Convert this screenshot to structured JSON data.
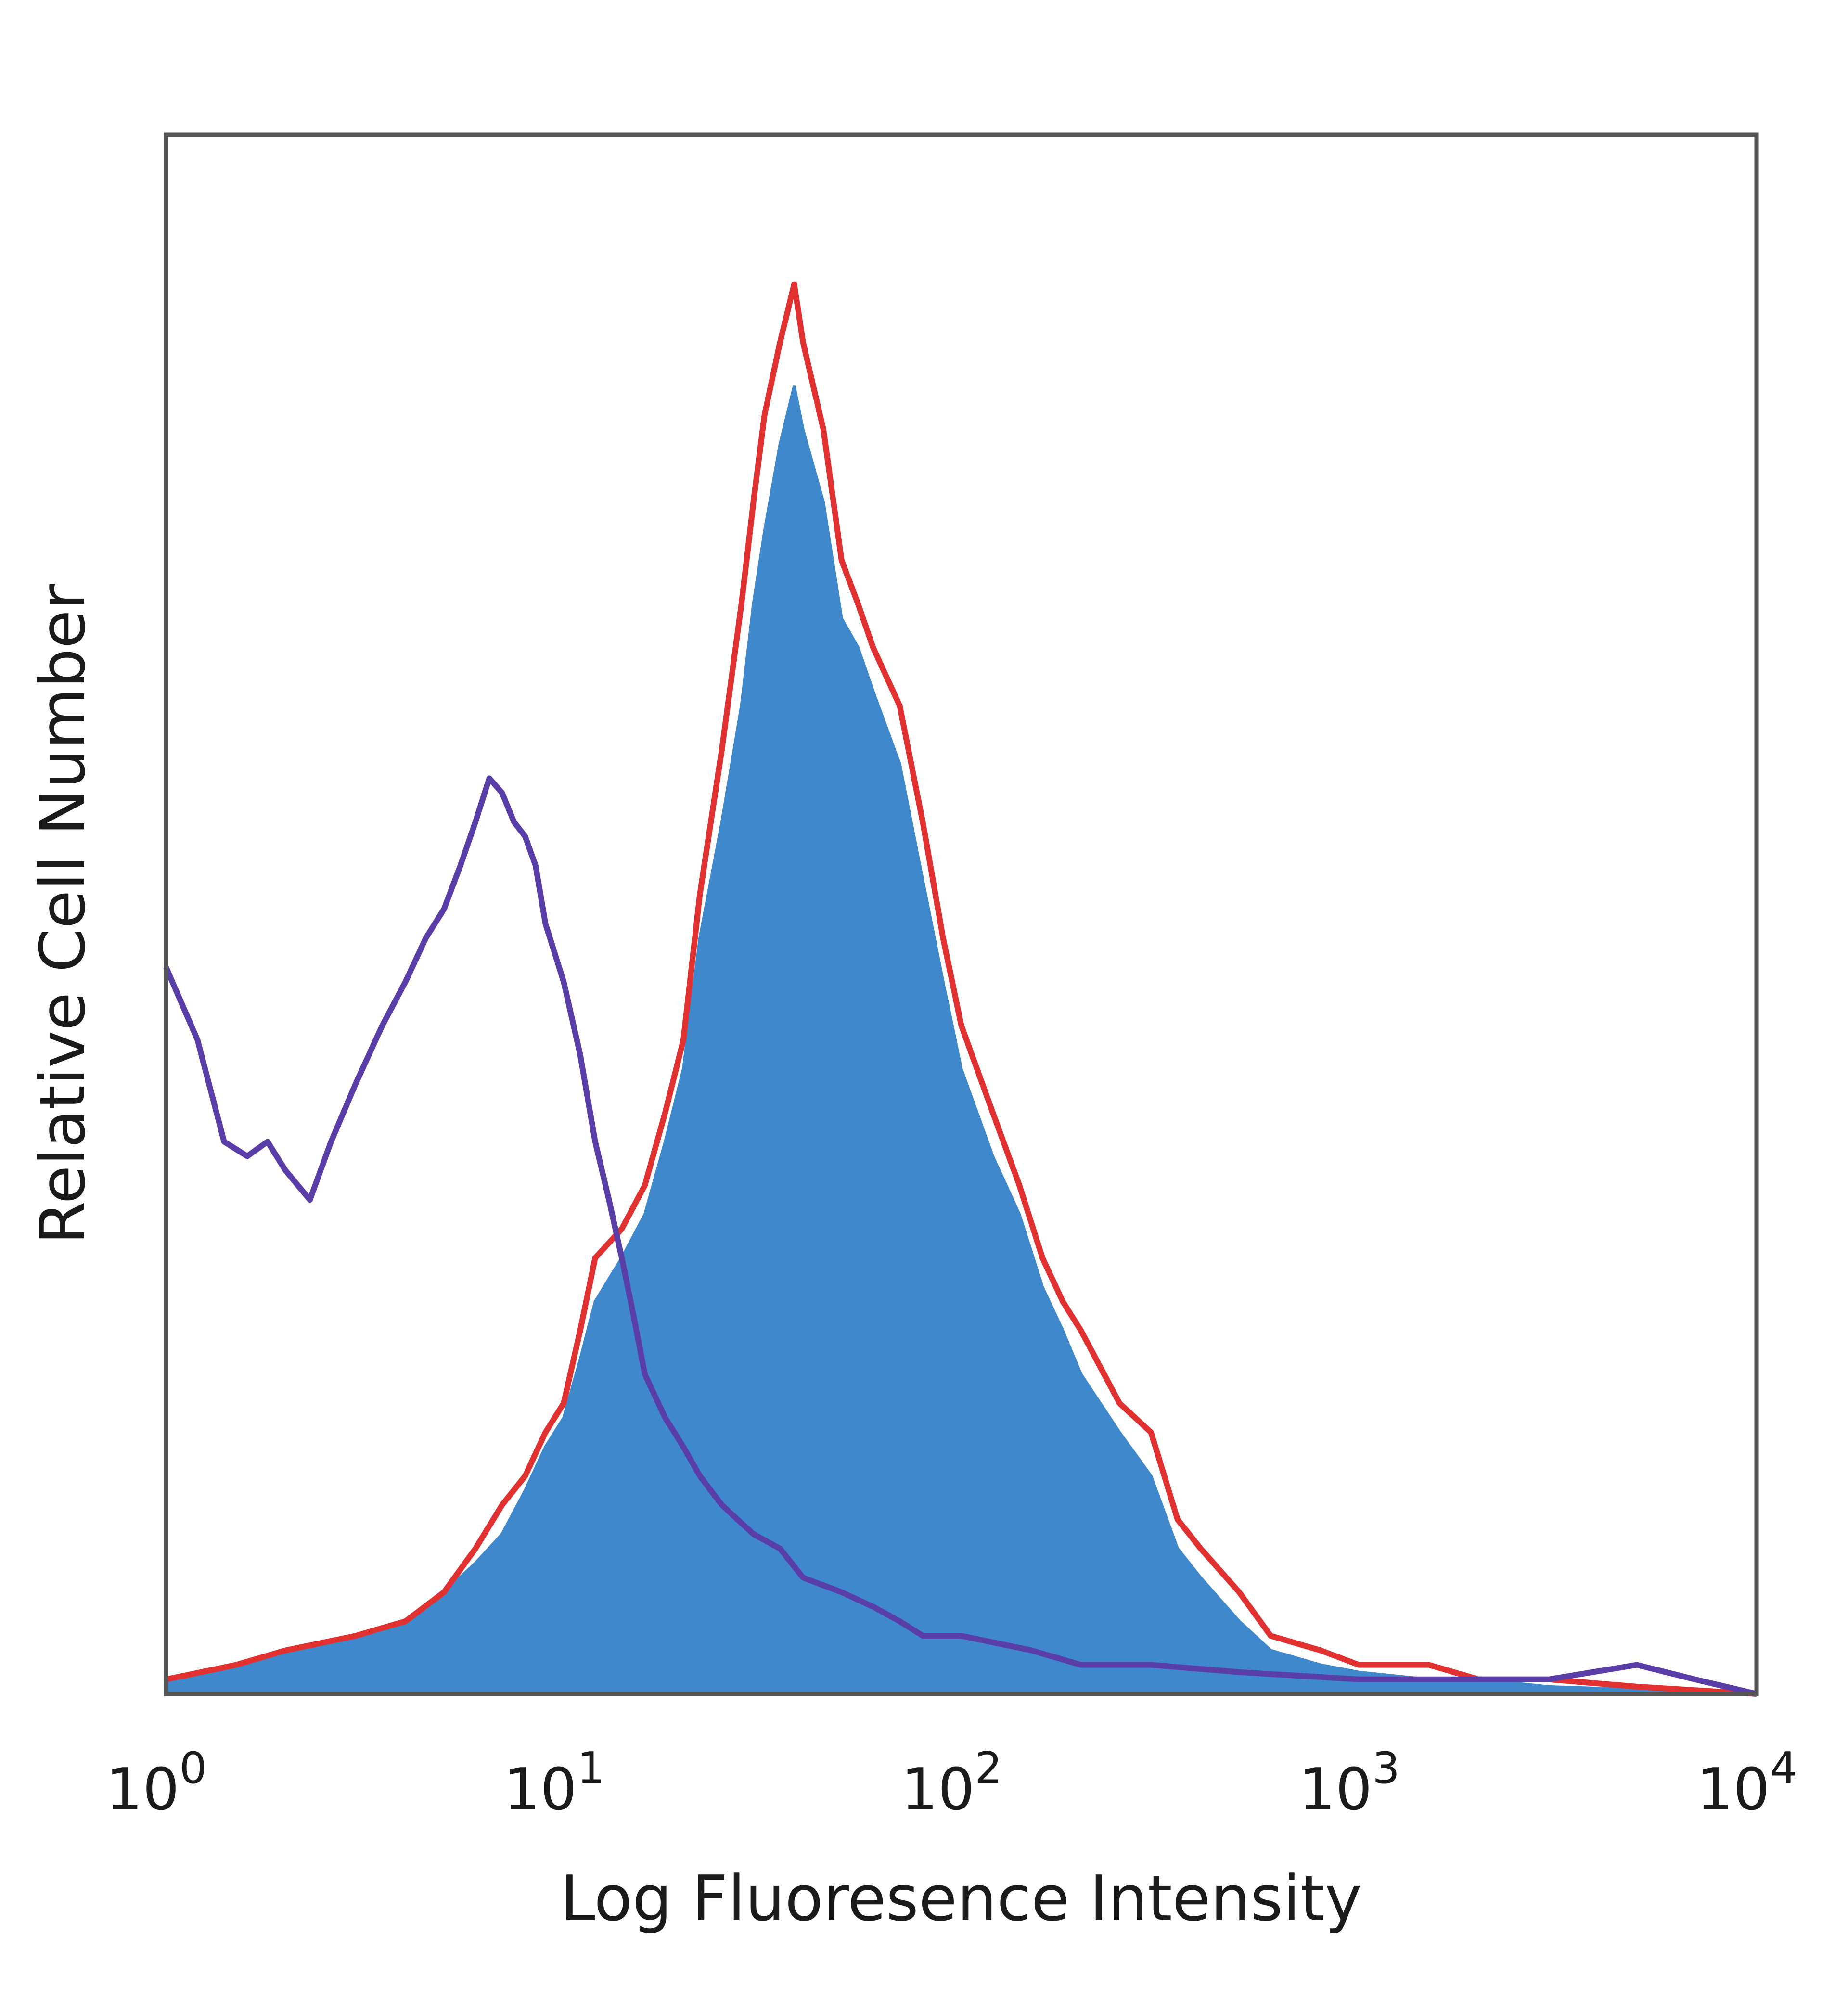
{
  "chart_data": {
    "type": "area",
    "xlabel": "Log Fluoresence Intensity",
    "ylabel": "Relative Cell Number",
    "xscale": "log",
    "xlim": [
      1,
      10000
    ],
    "ylim": [
      0,
      1
    ],
    "grid": false,
    "x_ticks": [
      {
        "base": "10",
        "exp": "0"
      },
      {
        "base": "10",
        "exp": "1"
      },
      {
        "base": "10",
        "exp": "2"
      },
      {
        "base": "10",
        "exp": "3"
      },
      {
        "base": "10",
        "exp": "4"
      }
    ],
    "series": [
      {
        "color": "#e03030",
        "style": "line",
        "x": [
          1,
          1.5,
          2,
          3,
          4,
          5,
          6,
          7,
          8,
          9,
          10,
          11,
          12,
          14,
          16,
          18,
          20,
          22,
          25,
          28,
          30,
          32,
          35,
          38,
          40,
          45,
          50,
          55,
          60,
          70,
          80,
          90,
          100,
          120,
          140,
          160,
          180,
          200,
          250,
          300,
          350,
          400,
          500,
          600,
          800,
          1000,
          1500,
          2000,
          3000,
          5000,
          10000
        ],
        "values": [
          0.01,
          0.02,
          0.03,
          0.04,
          0.05,
          0.07,
          0.1,
          0.13,
          0.15,
          0.18,
          0.2,
          0.25,
          0.3,
          0.32,
          0.35,
          0.4,
          0.45,
          0.55,
          0.65,
          0.75,
          0.82,
          0.88,
          0.93,
          0.97,
          0.93,
          0.87,
          0.78,
          0.75,
          0.72,
          0.68,
          0.6,
          0.52,
          0.46,
          0.4,
          0.35,
          0.3,
          0.27,
          0.25,
          0.2,
          0.18,
          0.12,
          0.1,
          0.07,
          0.04,
          0.03,
          0.02,
          0.02,
          0.01,
          0.01,
          0.005,
          0
        ]
      },
      {
        "color": "#3f88cc",
        "style": "filled",
        "x": [
          1,
          1.5,
          2,
          3,
          4,
          5,
          6,
          7,
          8,
          9,
          10,
          11,
          12,
          14,
          16,
          18,
          20,
          22,
          25,
          28,
          30,
          32,
          35,
          38,
          40,
          45,
          50,
          55,
          60,
          70,
          80,
          90,
          100,
          120,
          140,
          160,
          180,
          200,
          250,
          300,
          350,
          400,
          500,
          600,
          800,
          1000,
          1500,
          2000,
          3000,
          5000,
          10000
        ],
        "values": [
          0.01,
          0.02,
          0.03,
          0.04,
          0.05,
          0.07,
          0.09,
          0.11,
          0.14,
          0.17,
          0.19,
          0.23,
          0.27,
          0.3,
          0.33,
          0.38,
          0.43,
          0.52,
          0.6,
          0.68,
          0.75,
          0.8,
          0.86,
          0.9,
          0.87,
          0.82,
          0.74,
          0.72,
          0.69,
          0.64,
          0.56,
          0.49,
          0.43,
          0.37,
          0.33,
          0.28,
          0.25,
          0.22,
          0.18,
          0.15,
          0.1,
          0.08,
          0.05,
          0.03,
          0.02,
          0.015,
          0.01,
          0.01,
          0.005,
          0.003,
          0
        ]
      },
      {
        "color": "#5a3ea8",
        "style": "line",
        "x": [
          1,
          1.2,
          1.4,
          1.6,
          1.8,
          2,
          2.3,
          2.6,
          3,
          3.5,
          4,
          4.5,
          5,
          5.5,
          6,
          6.5,
          7,
          7.5,
          8,
          8.5,
          9,
          10,
          11,
          12,
          13,
          14,
          15,
          16,
          18,
          20,
          22,
          25,
          30,
          35,
          40,
          50,
          60,
          70,
          80,
          100,
          150,
          200,
          300,
          500,
          1000,
          2000,
          3000,
          5000,
          7000,
          10000
        ],
        "values": [
          0.5,
          0.45,
          0.38,
          0.37,
          0.38,
          0.36,
          0.34,
          0.38,
          0.42,
          0.46,
          0.49,
          0.52,
          0.54,
          0.57,
          0.6,
          0.63,
          0.62,
          0.6,
          0.59,
          0.57,
          0.53,
          0.49,
          0.44,
          0.38,
          0.34,
          0.3,
          0.26,
          0.22,
          0.19,
          0.17,
          0.15,
          0.13,
          0.11,
          0.1,
          0.08,
          0.07,
          0.06,
          0.05,
          0.04,
          0.04,
          0.03,
          0.02,
          0.02,
          0.015,
          0.01,
          0.01,
          0.01,
          0.02,
          0.01,
          0
        ]
      }
    ]
  }
}
